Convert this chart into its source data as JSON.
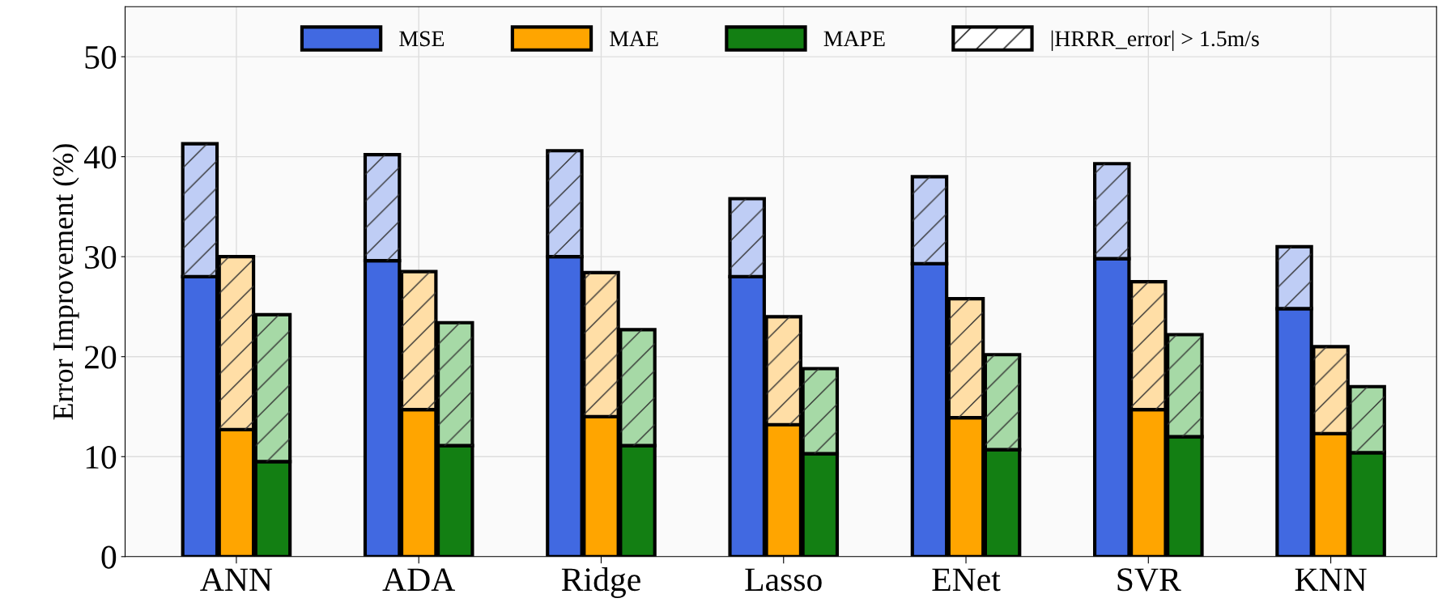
{
  "chart_data": {
    "type": "bar",
    "stacked": true,
    "ylabel": "Error Improvement (%)",
    "categories": [
      null,
      "ANN",
      null,
      null,
      null,
      null,
      "ADA",
      null,
      null,
      null,
      null,
      "Ridge",
      null,
      null,
      null,
      null,
      "Lasso",
      null,
      null,
      null,
      null,
      "ENet",
      null,
      null,
      null,
      null,
      "SVR",
      null,
      null,
      null,
      null,
      "KNN",
      null
    ],
    "series": [
      {
        "name": "MSE",
        "color": "#4169e1",
        "values": [
          28,
          null,
          null,
          null,
          null,
          29.6,
          null,
          null,
          null,
          null,
          30,
          null,
          null,
          null,
          null,
          28,
          null,
          null,
          null,
          null,
          29.3,
          null,
          null,
          null,
          null,
          29.8,
          null,
          null,
          null,
          null,
          24.8,
          null,
          null
        ]
      },
      {
        "name": "MAE",
        "color": "#ffa500",
        "values": [
          null,
          12.7,
          null,
          null,
          null,
          null,
          14.7,
          null,
          null,
          null,
          null,
          14,
          null,
          null,
          null,
          null,
          13.2,
          null,
          null,
          null,
          null,
          13.9,
          null,
          null,
          null,
          null,
          14.7,
          null,
          null,
          null,
          null,
          12.3,
          null
        ]
      },
      {
        "name": "MAPE",
        "color": "#137f13",
        "values": [
          null,
          null,
          9.5,
          null,
          null,
          null,
          null,
          11.1,
          null,
          null,
          null,
          null,
          11.1,
          null,
          null,
          null,
          null,
          10.3,
          null,
          null,
          null,
          null,
          10.7,
          null,
          null,
          null,
          null,
          12,
          null,
          null,
          null,
          null,
          10.4
        ]
      },
      {
        "color": "#bfcdf5",
        "values": [
          13.3,
          null,
          null,
          null,
          null,
          10.6,
          null,
          null,
          null,
          null,
          10.6,
          null,
          null,
          null,
          null,
          7.8,
          null,
          null,
          null,
          null,
          8.7,
          null,
          null,
          null,
          null,
          9.5,
          null,
          null,
          null,
          null,
          6.2,
          null,
          null
        ]
      },
      {
        "color": "#ffdea6",
        "values": [
          null,
          17.3,
          null,
          null,
          null,
          null,
          13.8,
          null,
          null,
          null,
          null,
          14.4,
          null,
          null,
          null,
          null,
          10.8,
          null,
          null,
          null,
          null,
          11.9,
          null,
          null,
          null,
          null,
          12.8,
          null,
          null,
          null,
          null,
          8.7,
          null
        ]
      },
      {
        "color": "#a6d9a6",
        "values": [
          null,
          null,
          14.7,
          null,
          null,
          null,
          null,
          12.3,
          null,
          null,
          null,
          null,
          11.6,
          null,
          null,
          null,
          null,
          8.5,
          null,
          null,
          null,
          null,
          9.5,
          null,
          null,
          null,
          null,
          10.2,
          null,
          null,
          null,
          null,
          6.6
        ]
      }
    ],
    "annotations": [
      "|HRRR_error| > 1.5m/s"
    ],
    "ylim": [
      0,
      55
    ],
    "yticks": [
      0,
      10,
      20,
      30,
      40,
      50
    ],
    "grid": true,
    "legend": "top"
  }
}
